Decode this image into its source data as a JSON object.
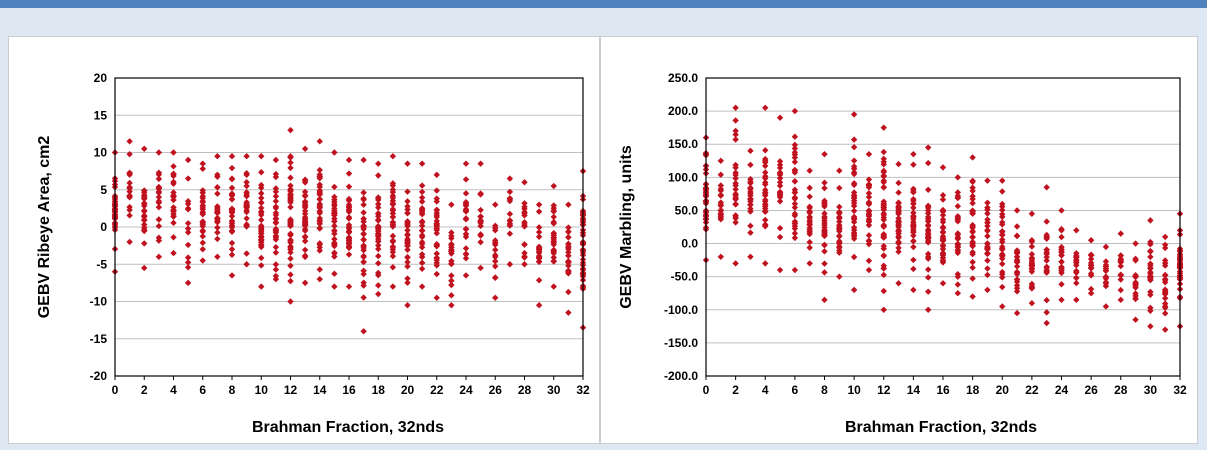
{
  "chart_data": [
    {
      "type": "scatter",
      "title": "",
      "xlabel": "Brahman Fraction, 32nds",
      "ylabel": "GEBV Ribeye Area, cm2",
      "xlim": [
        0,
        32
      ],
      "ylim": [
        -20,
        20
      ],
      "xticks": [
        "0",
        "2",
        "4",
        "6",
        "8",
        "10",
        "12",
        "14",
        "16",
        "18",
        "20",
        "22",
        "24",
        "26",
        "28",
        "30",
        "32"
      ],
      "yticks": [
        "20",
        "15",
        "10",
        "5",
        "0",
        "-5",
        "-10",
        "-15",
        "-20"
      ],
      "grid": "horizontal",
      "marker_color": "#c0111f",
      "columns": [
        {
          "x": 0,
          "min": -6,
          "max": 10,
          "n": 40
        },
        {
          "x": 1,
          "min": -2,
          "max": 11.5,
          "n": 16
        },
        {
          "x": 2,
          "min": -5.5,
          "max": 10.5,
          "n": 24
        },
        {
          "x": 3,
          "min": -4,
          "max": 10,
          "n": 20
        },
        {
          "x": 4,
          "min": -3.5,
          "max": 10,
          "n": 24
        },
        {
          "x": 5,
          "min": -7.5,
          "max": 9,
          "n": 14
        },
        {
          "x": 6,
          "min": -4.5,
          "max": 8.5,
          "n": 26
        },
        {
          "x": 7,
          "min": -4,
          "max": 9.5,
          "n": 22
        },
        {
          "x": 8,
          "min": -6.5,
          "max": 9.5,
          "n": 30
        },
        {
          "x": 9,
          "min": -5,
          "max": 9.5,
          "n": 28
        },
        {
          "x": 10,
          "min": -8,
          "max": 9.5,
          "n": 34
        },
        {
          "x": 11,
          "min": -7,
          "max": 9,
          "n": 30
        },
        {
          "x": 12,
          "min": -10,
          "max": 13,
          "n": 44
        },
        {
          "x": 13,
          "min": -7.5,
          "max": 10.5,
          "n": 34
        },
        {
          "x": 14,
          "min": -7,
          "max": 11.5,
          "n": 34
        },
        {
          "x": 15,
          "min": -8,
          "max": 10,
          "n": 32
        },
        {
          "x": 16,
          "min": -8,
          "max": 9,
          "n": 34
        },
        {
          "x": 17,
          "min": -14,
          "max": 9,
          "n": 32
        },
        {
          "x": 18,
          "min": -9,
          "max": 8.5,
          "n": 36
        },
        {
          "x": 19,
          "min": -8,
          "max": 9.5,
          "n": 30
        },
        {
          "x": 20,
          "min": -10.5,
          "max": 8.5,
          "n": 32
        },
        {
          "x": 21,
          "min": -8,
          "max": 8.5,
          "n": 28
        },
        {
          "x": 22,
          "min": -9.5,
          "max": 7,
          "n": 30
        },
        {
          "x": 23,
          "min": -10.5,
          "max": 3,
          "n": 20
        },
        {
          "x": 24,
          "min": -6.5,
          "max": 8.5,
          "n": 24
        },
        {
          "x": 25,
          "min": -5.5,
          "max": 8.5,
          "n": 16
        },
        {
          "x": 26,
          "min": -9.5,
          "max": 3,
          "n": 16
        },
        {
          "x": 27,
          "min": -5,
          "max": 6.5,
          "n": 14
        },
        {
          "x": 28,
          "min": -5,
          "max": 6,
          "n": 18
        },
        {
          "x": 29,
          "min": -10.5,
          "max": 3,
          "n": 22
        },
        {
          "x": 30,
          "min": -8,
          "max": 5.5,
          "n": 26
        },
        {
          "x": 31,
          "min": -11.5,
          "max": 3,
          "n": 26
        },
        {
          "x": 32,
          "min": -13.5,
          "max": 7.5,
          "n": 44
        }
      ]
    },
    {
      "type": "scatter",
      "title": "",
      "xlabel": "Brahman Fraction, 32nds",
      "ylabel": "GEBV Marbling, units",
      "xlim": [
        0,
        32
      ],
      "ylim": [
        -200,
        250
      ],
      "xticks": [
        "0",
        "2",
        "4",
        "6",
        "8",
        "10",
        "12",
        "14",
        "16",
        "18",
        "20",
        "22",
        "24",
        "26",
        "28",
        "30",
        "32"
      ],
      "yticks": [
        "250.0",
        "200.0",
        "150.0",
        "100.0",
        "50.0",
        "0.0",
        "-50.0",
        "-100.0",
        "-150.0",
        "-200.0"
      ],
      "grid": "horizontal",
      "marker_color": "#c0111f",
      "columns": [
        {
          "x": 0,
          "min": -25,
          "max": 160,
          "n": 40
        },
        {
          "x": 1,
          "min": -20,
          "max": 125,
          "n": 18
        },
        {
          "x": 2,
          "min": -30,
          "max": 205,
          "n": 26
        },
        {
          "x": 3,
          "min": -20,
          "max": 140,
          "n": 22
        },
        {
          "x": 4,
          "min": -30,
          "max": 205,
          "n": 28
        },
        {
          "x": 5,
          "min": -40,
          "max": 190,
          "n": 20
        },
        {
          "x": 6,
          "min": -40,
          "max": 200,
          "n": 30
        },
        {
          "x": 7,
          "min": -30,
          "max": 110,
          "n": 22
        },
        {
          "x": 8,
          "min": -85,
          "max": 135,
          "n": 30
        },
        {
          "x": 9,
          "min": -50,
          "max": 110,
          "n": 26
        },
        {
          "x": 10,
          "min": -70,
          "max": 195,
          "n": 34
        },
        {
          "x": 11,
          "min": -40,
          "max": 135,
          "n": 28
        },
        {
          "x": 12,
          "min": -100,
          "max": 175,
          "n": 44
        },
        {
          "x": 13,
          "min": -60,
          "max": 120,
          "n": 32
        },
        {
          "x": 14,
          "min": -70,
          "max": 135,
          "n": 32
        },
        {
          "x": 15,
          "min": -100,
          "max": 145,
          "n": 32
        },
        {
          "x": 16,
          "min": -60,
          "max": 115,
          "n": 30
        },
        {
          "x": 17,
          "min": -75,
          "max": 100,
          "n": 28
        },
        {
          "x": 18,
          "min": -80,
          "max": 130,
          "n": 32
        },
        {
          "x": 19,
          "min": -70,
          "max": 95,
          "n": 26
        },
        {
          "x": 20,
          "min": -95,
          "max": 95,
          "n": 30
        },
        {
          "x": 21,
          "min": -105,
          "max": 50,
          "n": 24
        },
        {
          "x": 22,
          "min": -90,
          "max": 45,
          "n": 22
        },
        {
          "x": 23,
          "min": -120,
          "max": 85,
          "n": 22
        },
        {
          "x": 24,
          "min": -85,
          "max": 50,
          "n": 22
        },
        {
          "x": 25,
          "min": -85,
          "max": 20,
          "n": 18
        },
        {
          "x": 26,
          "min": -75,
          "max": 5,
          "n": 16
        },
        {
          "x": 27,
          "min": -95,
          "max": -5,
          "n": 14
        },
        {
          "x": 28,
          "min": -85,
          "max": 15,
          "n": 16
        },
        {
          "x": 29,
          "min": -115,
          "max": 0,
          "n": 18
        },
        {
          "x": 30,
          "min": -125,
          "max": 35,
          "n": 26
        },
        {
          "x": 31,
          "min": -130,
          "max": 10,
          "n": 22
        },
        {
          "x": 32,
          "min": -125,
          "max": 45,
          "n": 40
        }
      ]
    }
  ]
}
